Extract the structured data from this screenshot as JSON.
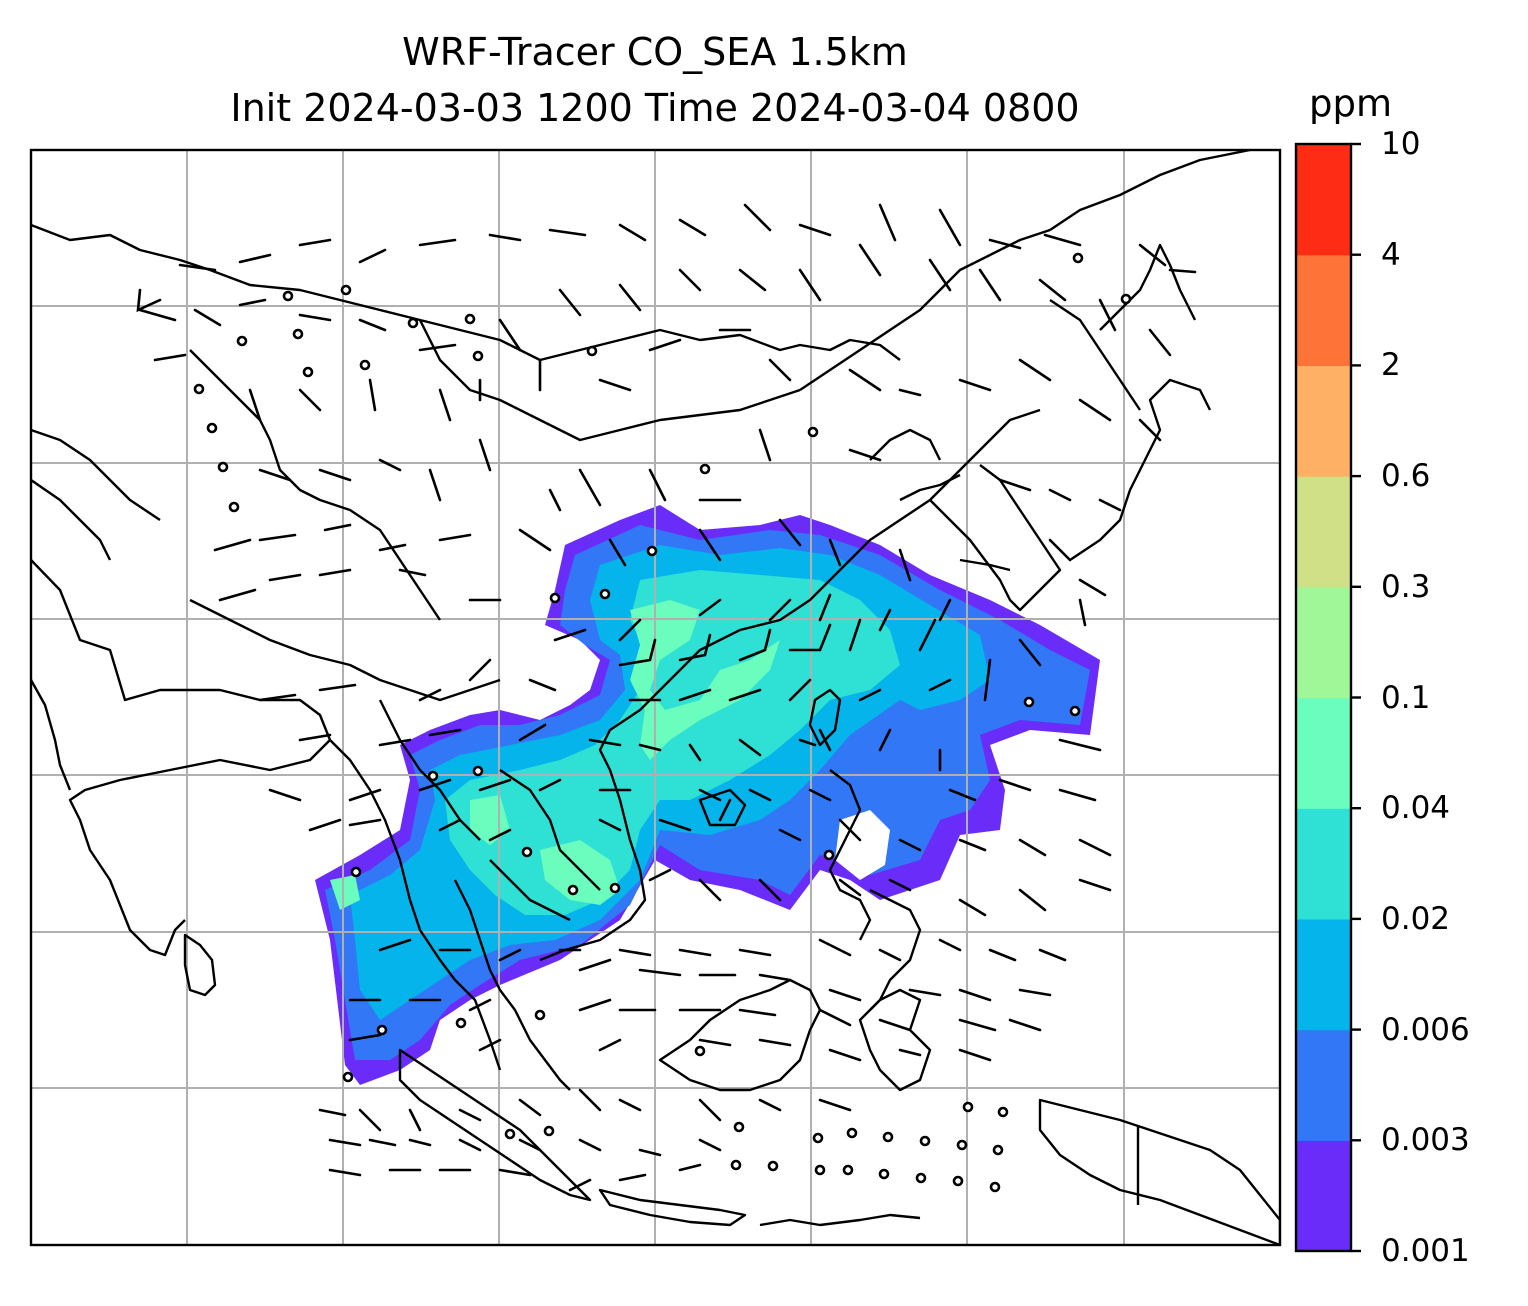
{
  "title": {
    "line1": "WRF-Tracer CO_SEA 1.5km",
    "line2": "Init 2024-03-03 1200 Time 2024-03-04 0800"
  },
  "colorbar": {
    "unit": "ppm",
    "ticks": [
      "0.001",
      "0.003",
      "0.006",
      "0.02",
      "0.04",
      "0.1",
      "0.3",
      "0.6",
      "2",
      "4",
      "10"
    ],
    "colors": [
      "#6a2cf9",
      "#3277f5",
      "#04b4ea",
      "#2fe0d4",
      "#6bfdbd",
      "#9ff797",
      "#cfe086",
      "#feb064",
      "#fe7438",
      "#fe2b15"
    ]
  },
  "map": {
    "features": [
      "coastlines",
      "country-borders",
      "lat-lon-grid",
      "co-tracer-concentration",
      "wind-barbs"
    ]
  }
}
